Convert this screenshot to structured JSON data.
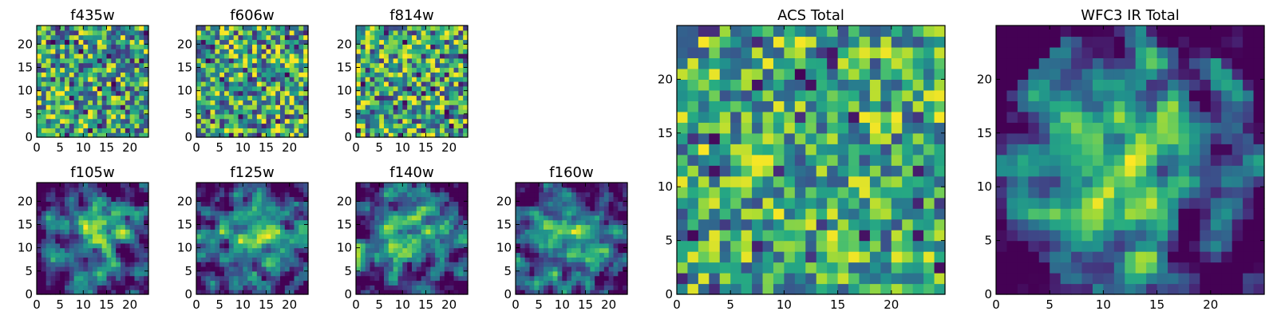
{
  "figure_title": "",
  "chart_data": [
    {
      "type": "heatmap",
      "title": "f435w",
      "image_size": [
        24,
        24
      ],
      "xlim": [
        0,
        24
      ],
      "ylim": [
        0,
        24
      ],
      "xticks": [
        0,
        5,
        10,
        15,
        20
      ],
      "yticks": [
        0,
        5,
        10,
        15,
        20
      ],
      "colormap": "viridis",
      "value_range": [
        0,
        1
      ],
      "pattern": "uniform noise",
      "seed": 11
    },
    {
      "type": "heatmap",
      "title": "f606w",
      "image_size": [
        24,
        24
      ],
      "xlim": [
        0,
        24
      ],
      "ylim": [
        0,
        24
      ],
      "xticks": [
        0,
        5,
        10,
        15,
        20
      ],
      "yticks": [
        0,
        5,
        10,
        15,
        20
      ],
      "colormap": "viridis",
      "value_range": [
        0,
        1
      ],
      "pattern": "uniform noise",
      "seed": 23
    },
    {
      "type": "heatmap",
      "title": "f814w",
      "image_size": [
        24,
        24
      ],
      "xlim": [
        0,
        24
      ],
      "ylim": [
        0,
        24
      ],
      "xticks": [
        0,
        5,
        10,
        15,
        20
      ],
      "yticks": [
        0,
        5,
        10,
        15,
        20
      ],
      "colormap": "viridis",
      "value_range": [
        0,
        1
      ],
      "pattern": "uniform noise",
      "seed": 37
    },
    {
      "type": "heatmap",
      "title": "f105w",
      "image_size": [
        24,
        24
      ],
      "xlim": [
        0,
        24
      ],
      "ylim": [
        0,
        24
      ],
      "xticks": [
        0,
        5,
        10,
        15,
        20
      ],
      "yticks": [
        0,
        5,
        10,
        15,
        20
      ],
      "colormap": "viridis",
      "value_range": [
        0,
        1
      ],
      "pattern": "smoothed noise with central brightening",
      "seed": 51
    },
    {
      "type": "heatmap",
      "title": "f125w",
      "image_size": [
        24,
        24
      ],
      "xlim": [
        0,
        24
      ],
      "ylim": [
        0,
        24
      ],
      "xticks": [
        0,
        5,
        10,
        15,
        20
      ],
      "yticks": [
        0,
        5,
        10,
        15,
        20
      ],
      "colormap": "viridis",
      "value_range": [
        0,
        1
      ],
      "pattern": "smoothed noise with central brightening",
      "seed": 67
    },
    {
      "type": "heatmap",
      "title": "f140w",
      "image_size": [
        24,
        24
      ],
      "xlim": [
        0,
        24
      ],
      "ylim": [
        0,
        24
      ],
      "xticks": [
        0,
        5,
        10,
        15,
        20
      ],
      "yticks": [
        0,
        5,
        10,
        15,
        20
      ],
      "colormap": "viridis",
      "value_range": [
        0,
        1
      ],
      "pattern": "smoothed noise with central brightening",
      "seed": 79
    },
    {
      "type": "heatmap",
      "title": "f160w",
      "image_size": [
        24,
        24
      ],
      "xlim": [
        0,
        24
      ],
      "ylim": [
        0,
        24
      ],
      "xticks": [
        0,
        5,
        10,
        15,
        20
      ],
      "yticks": [
        0,
        5,
        10,
        15,
        20
      ],
      "colormap": "viridis",
      "value_range": [
        0,
        1
      ],
      "pattern": "smoothed noise with central brightening",
      "seed": 91
    },
    {
      "type": "heatmap",
      "title": "ACS Total",
      "image_size": [
        25,
        25
      ],
      "xlim": [
        0,
        25
      ],
      "ylim": [
        0,
        25
      ],
      "xticks": [
        0,
        5,
        10,
        15,
        20
      ],
      "yticks": [
        0,
        5,
        10,
        15,
        20
      ],
      "colormap": "viridis",
      "value_range": [
        0,
        1
      ],
      "pattern": "noise, mostly green-yellow with sparse dark pixels",
      "seed": 103
    },
    {
      "type": "heatmap",
      "title": "WFC3 IR Total",
      "image_size": [
        25,
        25
      ],
      "xlim": [
        0,
        25
      ],
      "ylim": [
        0,
        25
      ],
      "xticks": [
        0,
        5,
        10,
        15,
        20
      ],
      "yticks": [
        0,
        5,
        10,
        15,
        20
      ],
      "colormap": "viridis",
      "value_range": [
        0,
        1
      ],
      "pattern": "smoothed noise, bright centre, dark corners",
      "seed": 127
    }
  ]
}
